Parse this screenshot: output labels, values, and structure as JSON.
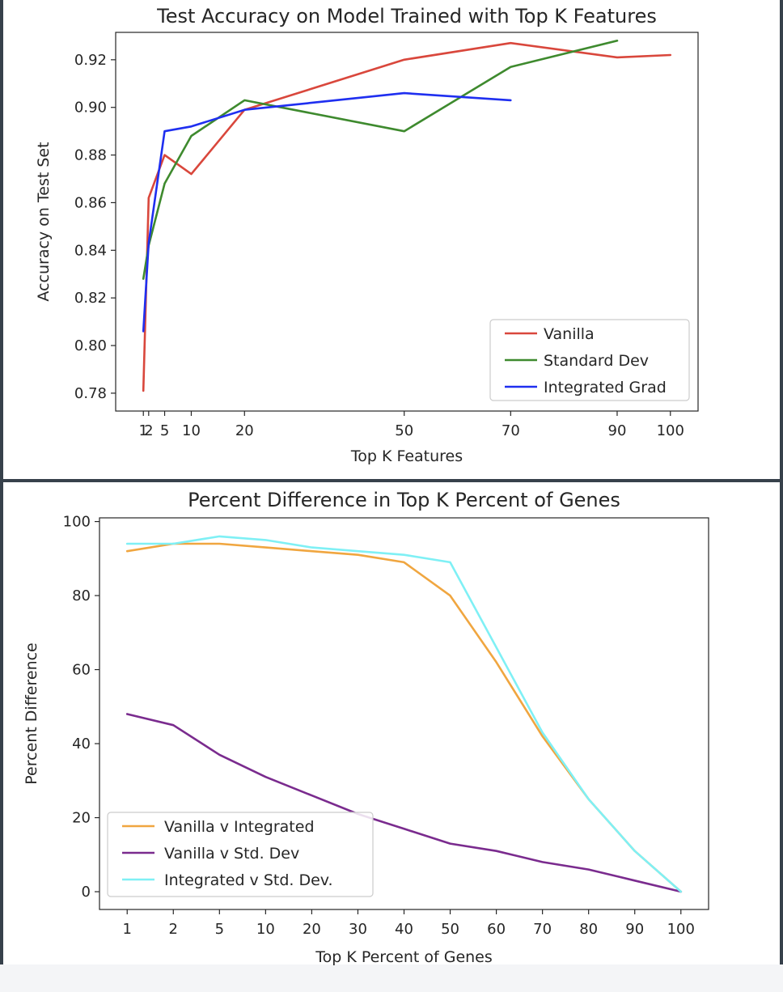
{
  "chart_data": [
    {
      "type": "line",
      "title": "Test Accuracy on Model Trained with Top K Features",
      "xlabel": "Top K Features",
      "ylabel": "Accuracy on Test Set",
      "xticks": [
        1,
        2,
        5,
        10,
        20,
        50,
        70,
        90,
        100
      ],
      "xtick_labels": [
        "1",
        "2",
        "5",
        "10",
        "20",
        "50",
        "70",
        "90",
        "100"
      ],
      "yticks": [
        0.78,
        0.8,
        0.82,
        0.84,
        0.86,
        0.88,
        0.9,
        0.92
      ],
      "ytick_labels": [
        "0.78",
        "0.80",
        "0.82",
        "0.84",
        "0.86",
        "0.88",
        "0.90",
        "0.92"
      ],
      "xlim": [
        -4.2,
        105.2
      ],
      "ylim": [
        0.7725,
        0.9315
      ],
      "grid": false,
      "legend_position": "lower-right",
      "series": [
        {
          "name": "Vanilla",
          "color": "#d9473c",
          "x": [
            1,
            2,
            5,
            10,
            20,
            50,
            70,
            90,
            100
          ],
          "y": [
            0.781,
            0.862,
            0.88,
            0.872,
            0.899,
            0.92,
            0.927,
            0.921,
            0.922
          ]
        },
        {
          "name": "Standard Dev",
          "color": "#3e8a2e",
          "x": [
            1,
            2,
            5,
            10,
            20,
            50,
            70,
            90
          ],
          "y": [
            0.828,
            0.842,
            0.868,
            0.888,
            0.903,
            0.89,
            0.917,
            0.928
          ]
        },
        {
          "name": "Integrated Grad",
          "color": "#1f2ff0",
          "x": [
            1,
            2,
            5,
            10,
            20,
            50,
            70
          ],
          "y": [
            0.806,
            0.843,
            0.89,
            0.892,
            0.899,
            0.906,
            0.903
          ]
        }
      ]
    },
    {
      "type": "line",
      "title": "Percent Difference in Top K Percent of Genes",
      "xlabel": "Top K Percent of Genes",
      "ylabel": "Percent Difference",
      "categories": [
        "1",
        "2",
        "5",
        "10",
        "20",
        "30",
        "40",
        "50",
        "60",
        "70",
        "80",
        "90",
        "100"
      ],
      "yticks": [
        0,
        20,
        40,
        60,
        80,
        100
      ],
      "ytick_labels": [
        "0",
        "20",
        "40",
        "60",
        "80",
        "100"
      ],
      "xlim": [
        -0.6,
        12.6
      ],
      "ylim": [
        -4.8,
        101.0
      ],
      "grid": false,
      "legend_position": "lower-left",
      "series": [
        {
          "name": "Vanilla v Integrated",
          "color": "#f0a640",
          "values": [
            92,
            94,
            94,
            93,
            92,
            91,
            89,
            80,
            62,
            42,
            25,
            11,
            0
          ]
        },
        {
          "name": "Vanilla v Std. Dev",
          "color": "#7a2b8e",
          "values": [
            48,
            45,
            37,
            31,
            26,
            21,
            17,
            13,
            11,
            8,
            6,
            3,
            0
          ]
        },
        {
          "name": "Integrated v Std. Dev.",
          "color": "#7ff0f5",
          "values": [
            94,
            94,
            96,
            95,
            93,
            92,
            91,
            89,
            66,
            43,
            25,
            11,
            0
          ]
        }
      ]
    }
  ]
}
